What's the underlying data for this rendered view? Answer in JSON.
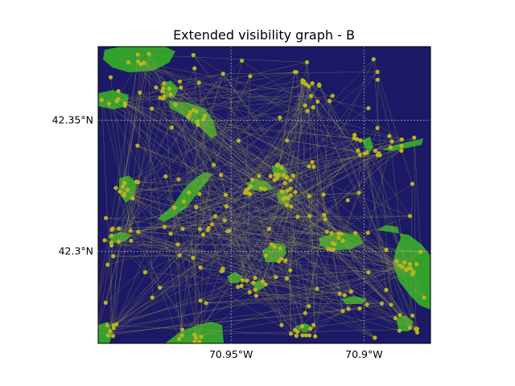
{
  "title": "Extended visibility graph - B",
  "map": {
    "ocean_color": "#1c1a66",
    "land_color": "#33a02c",
    "node_color": "#b8b41e",
    "edge_color": "#9a9a50",
    "grid": true,
    "lon_range": [
      -71.0,
      -70.875
    ],
    "lat_range": [
      42.265,
      42.378
    ],
    "lon_ticks": [
      {
        "value": -70.95,
        "label": "70.95°W"
      },
      {
        "value": -70.9,
        "label": "70.9°W"
      }
    ],
    "lat_ticks": [
      {
        "value": 42.35,
        "label": "42.35°N"
      },
      {
        "value": 42.3,
        "label": "42.3°N"
      }
    ]
  }
}
